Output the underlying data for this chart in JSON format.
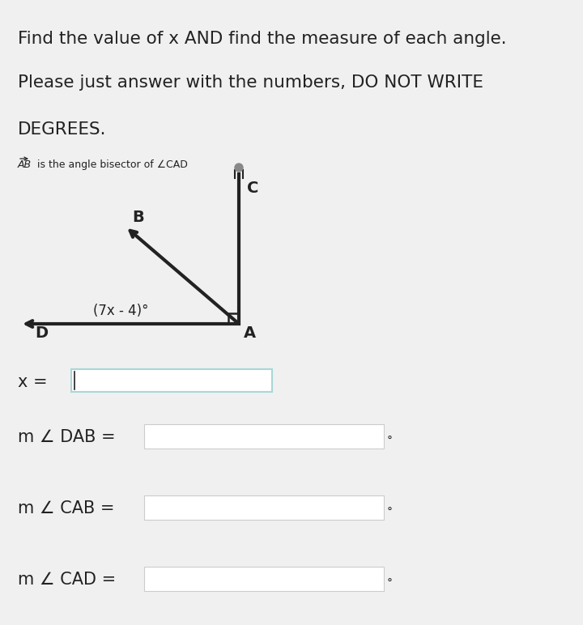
{
  "title_line1": "Find the value of x AND find the measure of each angle.",
  "title_line2": "Please just answer with the numbers, DO NOT WRITE",
  "title_line3": "DEGREES.",
  "bisector_label": " is the angle bisector of ∠CAD",
  "AB_label": "AB",
  "angle_label": "(7x - 4)°",
  "point_A": "A",
  "point_B": "B",
  "point_C": "C",
  "point_D": "D",
  "x_eq_label": "x = ",
  "dab_label": "m ∠ DAB = ",
  "cab_label": "m ∠ CAB = ",
  "cad_label": "m ∠ CAD = ",
  "bg_color": "#f0f0f0",
  "text_color": "#222222",
  "box_color_x": "#a8d8d8",
  "box_color_angle": "#cccccc",
  "fig_width": 7.2,
  "fig_height": 7.72,
  "dpi": 100
}
